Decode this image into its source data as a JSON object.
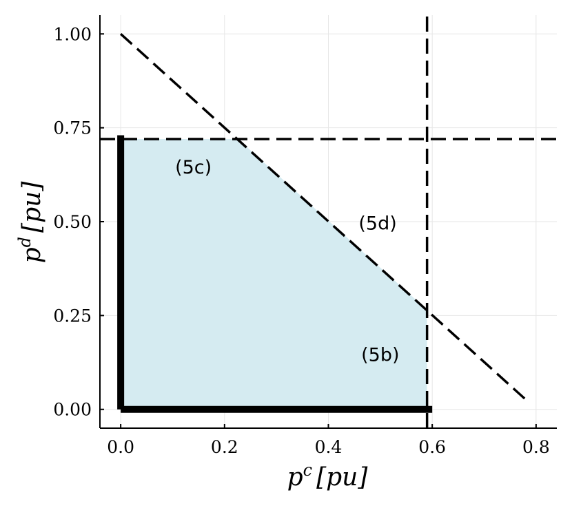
{
  "chart_data": {
    "type": "area",
    "title": "",
    "xlabel": {
      "base": "p",
      "sup": "c",
      "unit": "[pu]"
    },
    "ylabel": {
      "base": "p",
      "sup": "d",
      "unit": "[pu]"
    },
    "xlim": [
      -0.04,
      0.84
    ],
    "ylim": [
      -0.05,
      1.05
    ],
    "x_ticks": [
      {
        "value": 0.0,
        "label": "0.0"
      },
      {
        "value": 0.2,
        "label": "0.2"
      },
      {
        "value": 0.4,
        "label": "0.4"
      },
      {
        "value": 0.6,
        "label": "0.6"
      },
      {
        "value": 0.8,
        "label": "0.8"
      }
    ],
    "y_ticks": [
      {
        "value": 0.0,
        "label": "0.00"
      },
      {
        "value": 0.25,
        "label": "0.25"
      },
      {
        "value": 0.5,
        "label": "0.50"
      },
      {
        "value": 0.75,
        "label": "0.75"
      },
      {
        "value": 1.0,
        "label": "1.00"
      }
    ],
    "grid": true,
    "region": {
      "fill": "#d5ebf1",
      "points": [
        [
          0,
          0
        ],
        [
          0,
          0.72
        ],
        [
          0.226,
          0.72
        ],
        [
          0.59,
          0.265
        ],
        [
          0.59,
          0
        ]
      ]
    },
    "constraint_lines": [
      {
        "id": "5b",
        "type": "vertical",
        "x": 0.59,
        "y_range": [
          -0.05,
          1.05
        ]
      },
      {
        "id": "5c",
        "type": "horizontal",
        "y": 0.72,
        "x_range": [
          -0.04,
          0.84
        ]
      },
      {
        "id": "5d",
        "type": "segment",
        "points": [
          [
            0,
            1.0
          ],
          [
            0.785,
            0.02
          ]
        ]
      }
    ],
    "boundary_lines": [
      {
        "points": [
          [
            0,
            0
          ],
          [
            0,
            0.73
          ]
        ]
      },
      {
        "points": [
          [
            0,
            0
          ],
          [
            0.6,
            0
          ]
        ]
      }
    ],
    "annotations": [
      {
        "text": "(5c)",
        "x": 0.14,
        "y": 0.645
      },
      {
        "text": "(5d)",
        "x": 0.495,
        "y": 0.495
      },
      {
        "text": "(5b)",
        "x": 0.5,
        "y": 0.145
      }
    ]
  }
}
